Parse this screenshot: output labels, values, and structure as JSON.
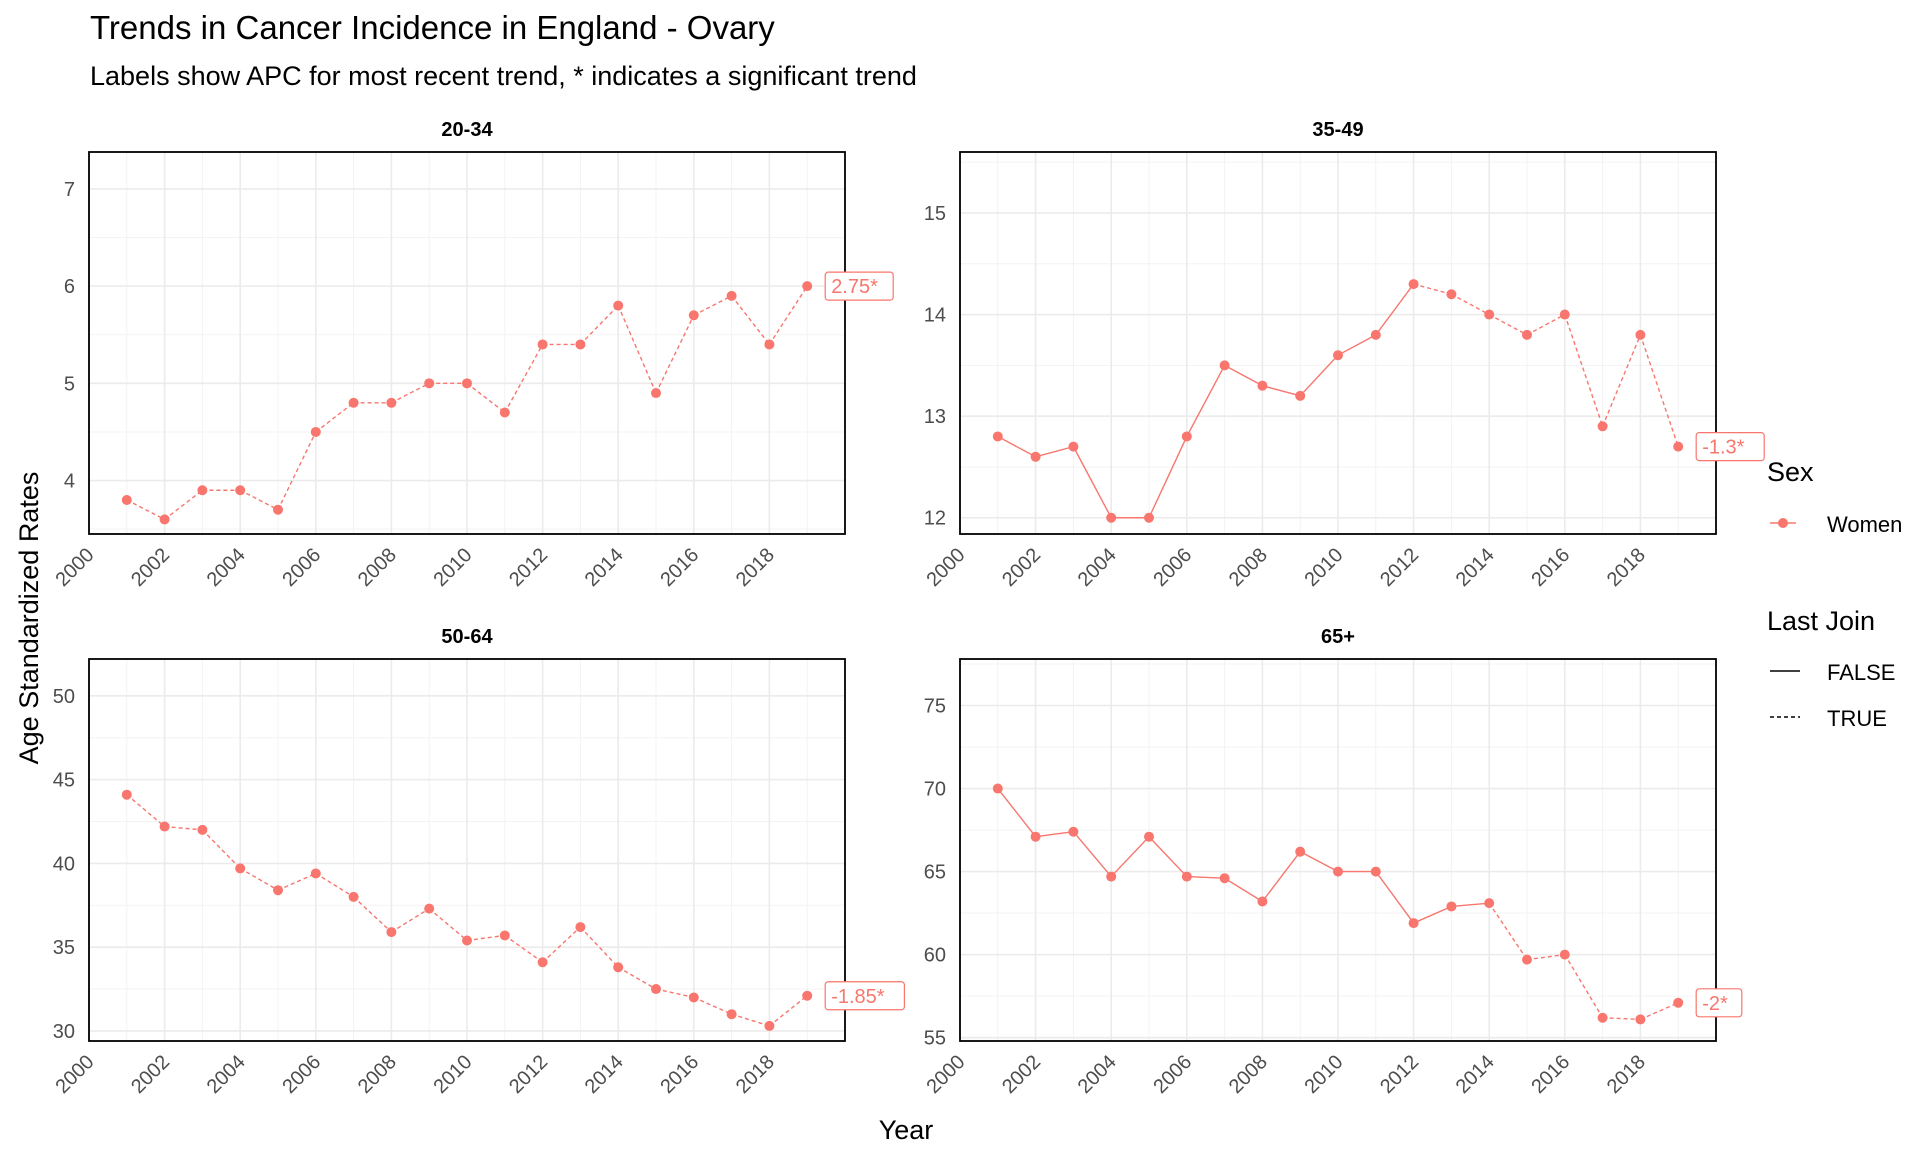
{
  "title": "Trends in Cancer Incidence in England - Ovary",
  "subtitle": "Labels show APC for most recent trend, * indicates a significant trend",
  "xlabel": "Year",
  "ylabel": "Age Standardized Rates",
  "colors": {
    "series": "#F8766D",
    "panel_border": "#000000",
    "grid_major": "#EBEBEB",
    "grid_minor": "#F3F3F3",
    "text": "#000000",
    "tick_text": "#4D4D4D"
  },
  "legend": {
    "placement": "right",
    "sex_title": "Sex",
    "sex_items": [
      "Women"
    ],
    "join_title": "Last Join",
    "join_items": [
      {
        "label": "FALSE",
        "linetype": "solid"
      },
      {
        "label": "TRUE",
        "linetype": "dashed"
      }
    ]
  },
  "chart_data": [
    {
      "type": "line",
      "panel": "20-34",
      "x": [
        2001,
        2002,
        2003,
        2004,
        2005,
        2006,
        2007,
        2008,
        2009,
        2010,
        2011,
        2012,
        2013,
        2014,
        2015,
        2016,
        2017,
        2018,
        2019
      ],
      "series": [
        {
          "name": "Women",
          "values": [
            3.8,
            3.6,
            3.9,
            3.9,
            3.7,
            4.5,
            4.8,
            4.8,
            5.0,
            5.0,
            4.7,
            5.4,
            5.4,
            5.8,
            4.9,
            5.7,
            5.9,
            5.4,
            6.0
          ]
        }
      ],
      "last_join_start": 2001,
      "apc_label": "2.75*",
      "xlim": [
        2000,
        2020
      ],
      "ylim": [
        3.45,
        7.38
      ],
      "yticks": [
        4,
        5,
        6,
        7
      ],
      "xticks": [
        2000,
        2002,
        2004,
        2006,
        2008,
        2010,
        2012,
        2014,
        2016,
        2018
      ],
      "grid": true
    },
    {
      "type": "line",
      "panel": "35-49",
      "x": [
        2001,
        2002,
        2003,
        2004,
        2005,
        2006,
        2007,
        2008,
        2009,
        2010,
        2011,
        2012,
        2013,
        2014,
        2015,
        2016,
        2017,
        2018,
        2019
      ],
      "series": [
        {
          "name": "Women",
          "values": [
            12.8,
            12.6,
            12.7,
            12.0,
            12.0,
            12.8,
            13.5,
            13.3,
            13.2,
            13.6,
            13.8,
            14.3,
            14.2,
            14.0,
            13.8,
            14.0,
            12.9,
            13.8,
            12.7
          ]
        }
      ],
      "last_join_start": 2012,
      "apc_label": "-1.3*",
      "xlim": [
        2000,
        2020
      ],
      "ylim": [
        11.84,
        15.6
      ],
      "yticks": [
        12,
        13,
        14,
        15
      ],
      "xticks": [
        2000,
        2002,
        2004,
        2006,
        2008,
        2010,
        2012,
        2014,
        2016,
        2018
      ],
      "grid": true
    },
    {
      "type": "line",
      "panel": "50-64",
      "x": [
        2001,
        2002,
        2003,
        2004,
        2005,
        2006,
        2007,
        2008,
        2009,
        2010,
        2011,
        2012,
        2013,
        2014,
        2015,
        2016,
        2017,
        2018,
        2019
      ],
      "series": [
        {
          "name": "Women",
          "values": [
            44.1,
            42.2,
            42.0,
            39.7,
            38.4,
            39.4,
            38.0,
            35.9,
            37.3,
            35.4,
            35.7,
            34.1,
            36.2,
            33.8,
            32.5,
            32.0,
            31.0,
            30.3,
            32.1
          ]
        }
      ],
      "last_join_start": 2001,
      "apc_label": "-1.85*",
      "xlim": [
        2000,
        2020
      ],
      "ylim": [
        29.4,
        52.2
      ],
      "yticks": [
        30,
        35,
        40,
        45,
        50
      ],
      "xticks": [
        2000,
        2002,
        2004,
        2006,
        2008,
        2010,
        2012,
        2014,
        2016,
        2018
      ],
      "grid": true
    },
    {
      "type": "line",
      "panel": "65+",
      "x": [
        2001,
        2002,
        2003,
        2004,
        2005,
        2006,
        2007,
        2008,
        2009,
        2010,
        2011,
        2012,
        2013,
        2014,
        2015,
        2016,
        2017,
        2018,
        2019
      ],
      "series": [
        {
          "name": "Women",
          "values": [
            70.0,
            67.1,
            67.4,
            64.7,
            67.1,
            64.7,
            64.6,
            63.2,
            66.2,
            65.0,
            65.0,
            61.9,
            62.9,
            63.1,
            59.7,
            60.0,
            56.2,
            56.1,
            57.1
          ]
        }
      ],
      "last_join_start": 2014,
      "apc_label": "-2*",
      "xlim": [
        2000,
        2020
      ],
      "ylim": [
        54.8,
        77.8
      ],
      "yticks": [
        55,
        60,
        65,
        70,
        75
      ],
      "xticks": [
        2000,
        2002,
        2004,
        2006,
        2008,
        2010,
        2012,
        2014,
        2016,
        2018
      ],
      "grid": true
    }
  ]
}
